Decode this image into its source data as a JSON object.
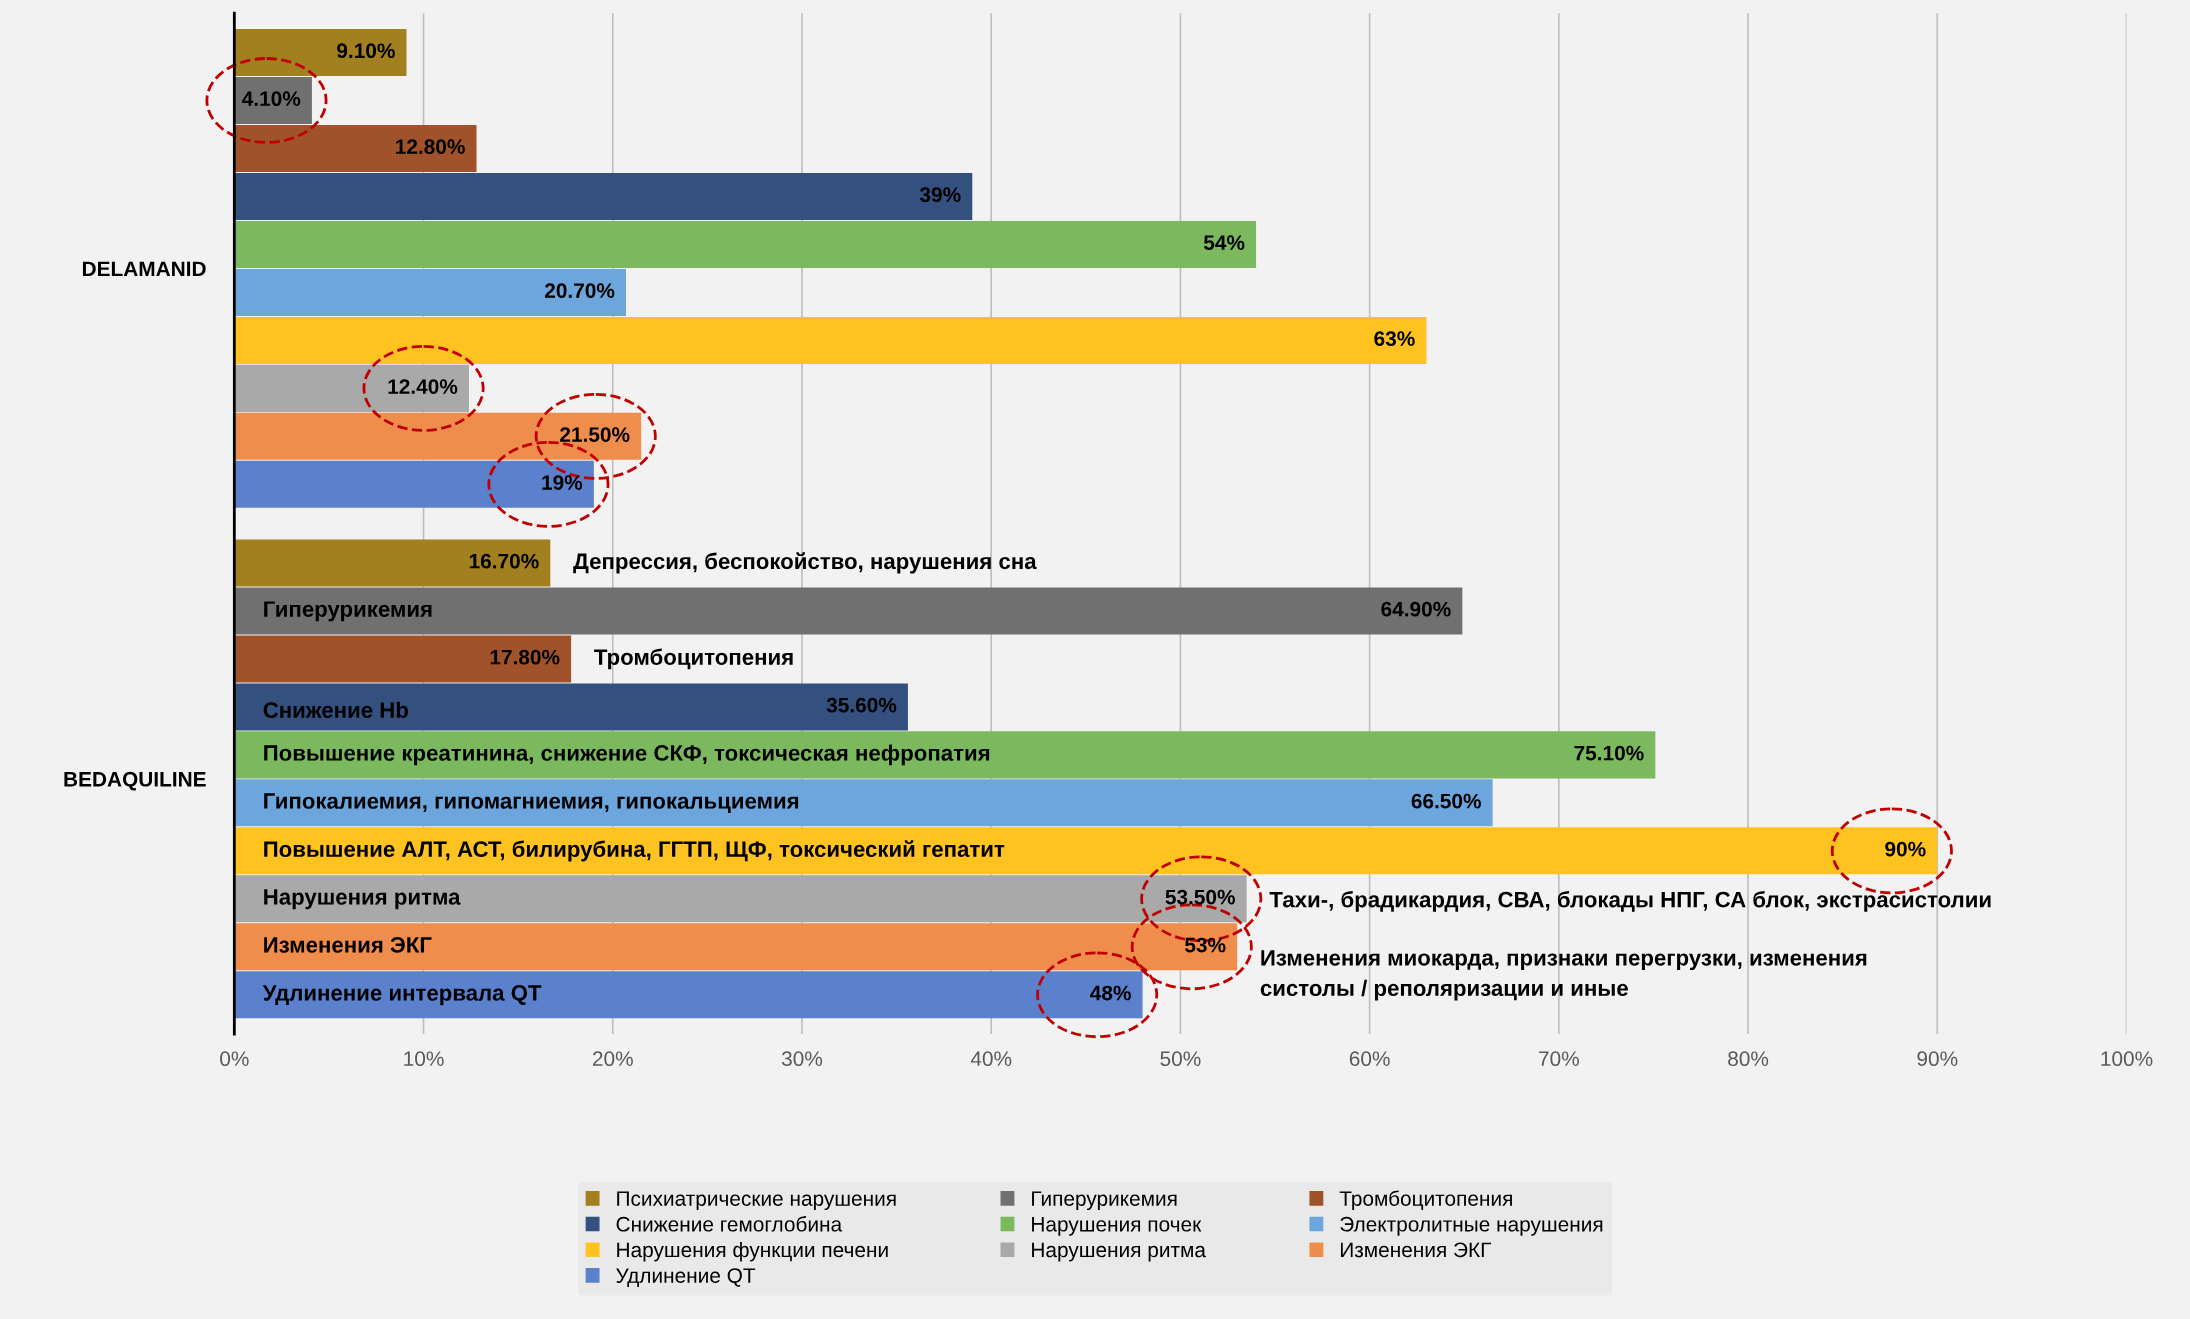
{
  "chart_data": {
    "type": "bar",
    "orientation": "horizontal",
    "categories": [
      "DELAMANID",
      "BEDAQUILINE"
    ],
    "xlim": [
      0,
      100
    ],
    "xticks": [
      {
        "value": 0,
        "label": "0%"
      },
      {
        "value": 10,
        "label": "10%"
      },
      {
        "value": 20,
        "label": "20%"
      },
      {
        "value": 30,
        "label": "30%"
      },
      {
        "value": 40,
        "label": "40%"
      },
      {
        "value": 50,
        "label": "50%"
      },
      {
        "value": 60,
        "label": "60%"
      },
      {
        "value": 70,
        "label": "70%"
      },
      {
        "value": 80,
        "label": "80%"
      },
      {
        "value": 90,
        "label": "90%"
      },
      {
        "value": 100,
        "label": "100%"
      }
    ],
    "grid": "x",
    "legend": "bottom",
    "series": [
      {
        "name": "Психиатрические нарушения",
        "color": "#a27f1f",
        "values": [
          9.1,
          16.7
        ],
        "value_labels": [
          "9.10%",
          "16.70%"
        ]
      },
      {
        "name": "Гиперурикемия",
        "color": "#707070",
        "values": [
          4.1,
          64.9
        ],
        "value_labels": [
          "4.10%",
          "64.90%"
        ]
      },
      {
        "name": "Тромбоцитопения",
        "color": "#a0522a",
        "values": [
          12.8,
          17.8
        ],
        "value_labels": [
          "12.80%",
          "17.80%"
        ]
      },
      {
        "name": "Снижение гемоглобина",
        "color": "#34507f",
        "values": [
          39,
          35.6
        ],
        "value_labels": [
          "39%",
          "35.60%"
        ]
      },
      {
        "name": "Нарушения почек",
        "color": "#7cb95e",
        "values": [
          54,
          75.1
        ],
        "value_labels": [
          "54%",
          "75.10%"
        ]
      },
      {
        "name": "Электролитные нарушения",
        "color": "#6da6dc",
        "values": [
          20.7,
          66.5
        ],
        "value_labels": [
          "20.70%",
          "66.50%"
        ]
      },
      {
        "name": "Нарушения функции печени",
        "color": "#ffc321",
        "values": [
          63,
          90
        ],
        "value_labels": [
          "63%",
          "90%"
        ]
      },
      {
        "name": "Нарушения ритма",
        "color": "#a9a9a9",
        "values": [
          12.4,
          53.5
        ],
        "value_labels": [
          "12.40%",
          "53.50%"
        ]
      },
      {
        "name": "Изменения ЭКГ",
        "color": "#ef8d4c",
        "values": [
          21.5,
          53
        ],
        "value_labels": [
          "21.50%",
          "53%"
        ]
      },
      {
        "name": "Удлинение QT",
        "color": "#5b80cc",
        "values": [
          19,
          48
        ],
        "value_labels": [
          "19%",
          "48%"
        ]
      }
    ],
    "annotations": [
      "Депрессия, беспокойство, нарушения сна",
      "Гиперурикемия",
      "Тромбоцитопения",
      "Снижение Hb",
      "Повышение креатинина, снижение СКФ, токсическая нефропатия",
      "Гипокалиемия, гипомагниемия, гипокальциемия",
      "Повышение АЛТ, АСТ, билирубина, ГГТП, ЩФ, токсический гепатит",
      "Нарушения ритма",
      "Тахи-, брадикардия, СВА, блокады НПГ, СА блок, экстрасистолии",
      "Изменения ЭКГ",
      "Изменения миокарда, признаки перегрузки, изменения\nсистолы / реполяризации и иные",
      "Удлинение интервала QT"
    ]
  }
}
